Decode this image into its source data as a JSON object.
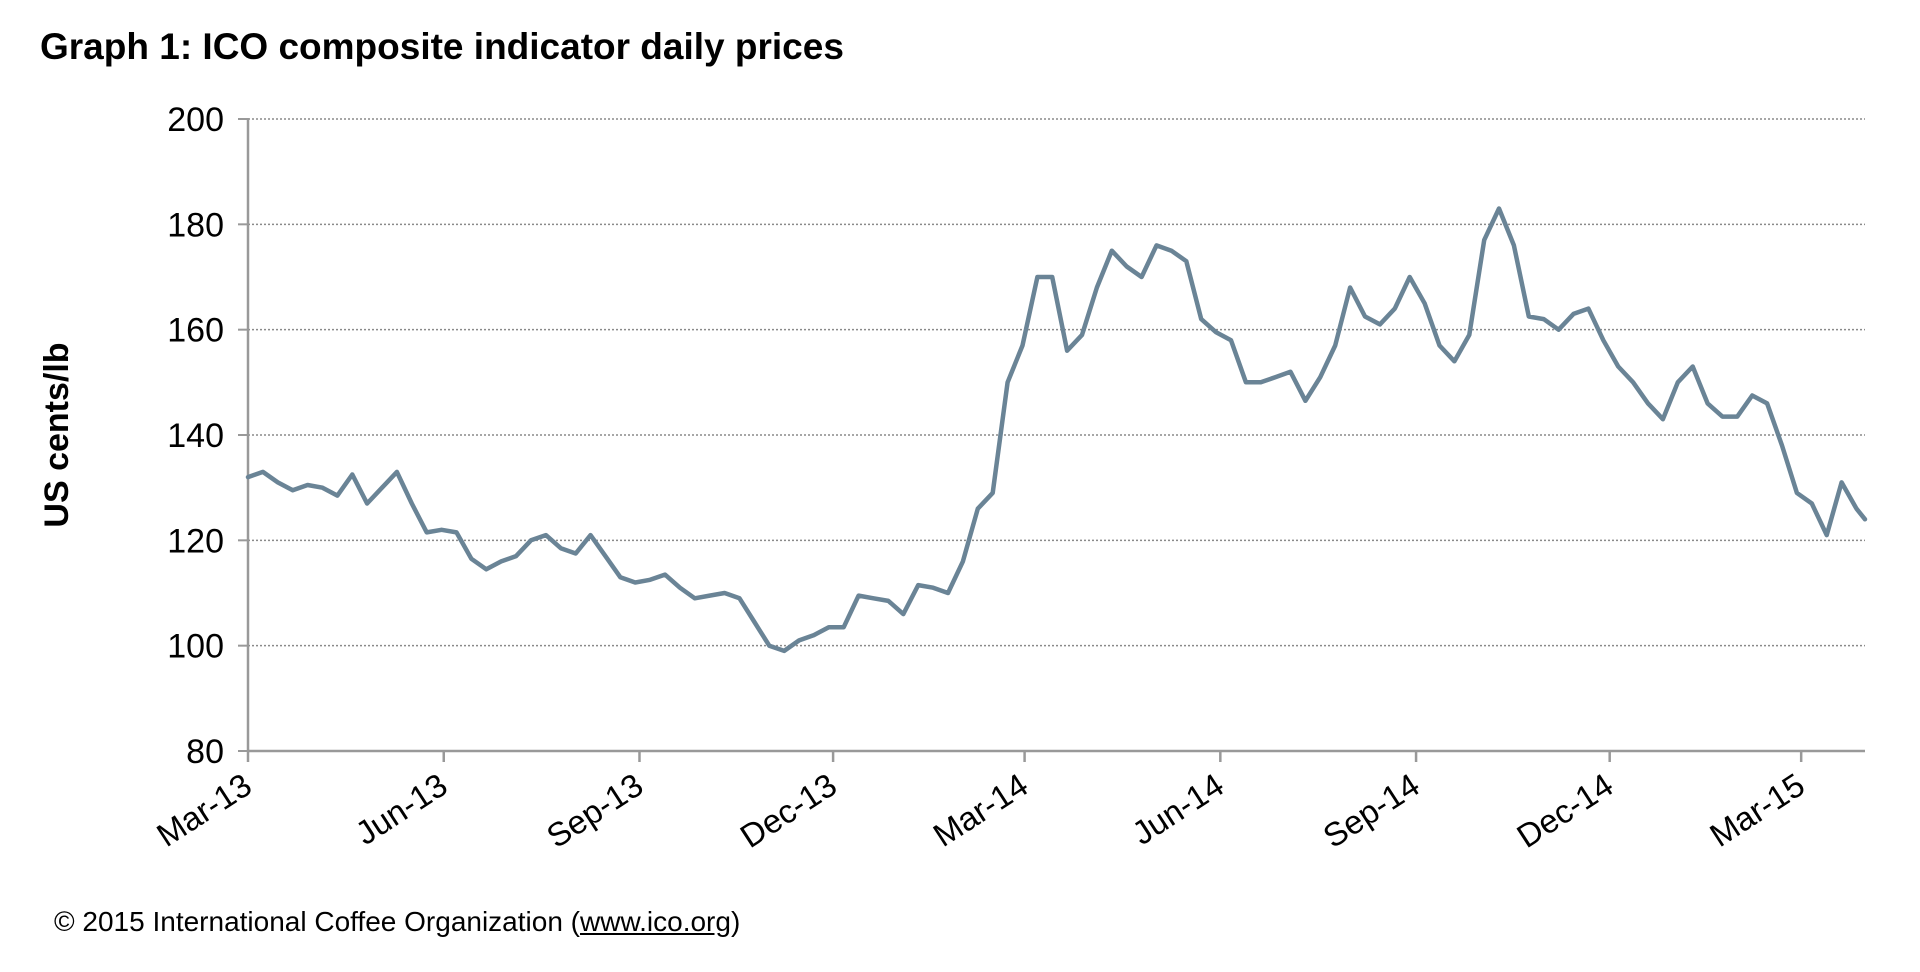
{
  "chart_data": {
    "type": "line",
    "title": "Graph 1: ICO composite indicator daily prices",
    "xlabel": "",
    "ylabel": "US cents/lb",
    "ylim": [
      80,
      200
    ],
    "yticks": [
      "80",
      "100",
      "120",
      "140",
      "160",
      "180",
      "200"
    ],
    "xticks": [
      {
        "label": "Mar-13",
        "date": "2013-03-01"
      },
      {
        "label": "Jun-13",
        "date": "2013-06-01"
      },
      {
        "label": "Sep-13",
        "date": "2013-09-01"
      },
      {
        "label": "Dec-13",
        "date": "2013-12-01"
      },
      {
        "label": "Mar-14",
        "date": "2014-03-01"
      },
      {
        "label": "Jun-14",
        "date": "2014-06-01"
      },
      {
        "label": "Sep-14",
        "date": "2014-09-01"
      },
      {
        "label": "Dec-14",
        "date": "2014-12-01"
      },
      {
        "label": "Mar-15",
        "date": "2015-03-01"
      }
    ],
    "xlim": [
      "2013-03-01",
      "2015-03-31"
    ],
    "grid": "horizontal-dotted",
    "line_color": "#6a8496",
    "points": [
      [
        "2013-03-01",
        132
      ],
      [
        "2013-03-08",
        133
      ],
      [
        "2013-03-15",
        131
      ],
      [
        "2013-03-22",
        129.5
      ],
      [
        "2013-03-29",
        130.5
      ],
      [
        "2013-04-05",
        130
      ],
      [
        "2013-04-12",
        128.5
      ],
      [
        "2013-04-19",
        132.5
      ],
      [
        "2013-04-26",
        127
      ],
      [
        "2013-05-03",
        130
      ],
      [
        "2013-05-10",
        133
      ],
      [
        "2013-05-17",
        127
      ],
      [
        "2013-05-24",
        121.5
      ],
      [
        "2013-05-31",
        122
      ],
      [
        "2013-06-07",
        121.5
      ],
      [
        "2013-06-14",
        116.5
      ],
      [
        "2013-06-21",
        114.5
      ],
      [
        "2013-06-28",
        116
      ],
      [
        "2013-07-05",
        117
      ],
      [
        "2013-07-12",
        120
      ],
      [
        "2013-07-19",
        121
      ],
      [
        "2013-07-26",
        118.5
      ],
      [
        "2013-08-02",
        117.5
      ],
      [
        "2013-08-09",
        121
      ],
      [
        "2013-08-16",
        117
      ],
      [
        "2013-08-23",
        113
      ],
      [
        "2013-08-30",
        112
      ],
      [
        "2013-09-06",
        112.5
      ],
      [
        "2013-09-13",
        113.5
      ],
      [
        "2013-09-20",
        111
      ],
      [
        "2013-09-27",
        109
      ],
      [
        "2013-10-04",
        109.5
      ],
      [
        "2013-10-11",
        110
      ],
      [
        "2013-10-18",
        109
      ],
      [
        "2013-10-25",
        104.5
      ],
      [
        "2013-11-01",
        100
      ],
      [
        "2013-11-08",
        99
      ],
      [
        "2013-11-15",
        101
      ],
      [
        "2013-11-22",
        102
      ],
      [
        "2013-11-29",
        103.5
      ],
      [
        "2013-12-06",
        103.5
      ],
      [
        "2013-12-13",
        109.5
      ],
      [
        "2013-12-20",
        109
      ],
      [
        "2013-12-27",
        108.5
      ],
      [
        "2014-01-03",
        106
      ],
      [
        "2014-01-10",
        111.5
      ],
      [
        "2014-01-17",
        111
      ],
      [
        "2014-01-24",
        110
      ],
      [
        "2014-01-31",
        116
      ],
      [
        "2014-02-07",
        126
      ],
      [
        "2014-02-14",
        129
      ],
      [
        "2014-02-21",
        150
      ],
      [
        "2014-02-28",
        157
      ],
      [
        "2014-03-07",
        170
      ],
      [
        "2014-03-14",
        170
      ],
      [
        "2014-03-21",
        156
      ],
      [
        "2014-03-28",
        159
      ],
      [
        "2014-04-04",
        168
      ],
      [
        "2014-04-11",
        175
      ],
      [
        "2014-04-18",
        172
      ],
      [
        "2014-04-25",
        170
      ],
      [
        "2014-05-02",
        176
      ],
      [
        "2014-05-09",
        175
      ],
      [
        "2014-05-16",
        173
      ],
      [
        "2014-05-23",
        162
      ],
      [
        "2014-05-30",
        159.5
      ],
      [
        "2014-06-06",
        158
      ],
      [
        "2014-06-13",
        150
      ],
      [
        "2014-06-20",
        150
      ],
      [
        "2014-06-27",
        151
      ],
      [
        "2014-07-04",
        152
      ],
      [
        "2014-07-11",
        146.5
      ],
      [
        "2014-07-18",
        151
      ],
      [
        "2014-07-25",
        157
      ],
      [
        "2014-08-01",
        168
      ],
      [
        "2014-08-08",
        162.5
      ],
      [
        "2014-08-15",
        161
      ],
      [
        "2014-08-22",
        164
      ],
      [
        "2014-08-29",
        170
      ],
      [
        "2014-09-05",
        165
      ],
      [
        "2014-09-12",
        157
      ],
      [
        "2014-09-19",
        154
      ],
      [
        "2014-09-26",
        159
      ],
      [
        "2014-10-03",
        177
      ],
      [
        "2014-10-10",
        183
      ],
      [
        "2014-10-17",
        176
      ],
      [
        "2014-10-24",
        162.5
      ],
      [
        "2014-10-31",
        162
      ],
      [
        "2014-11-07",
        160
      ],
      [
        "2014-11-14",
        163
      ],
      [
        "2014-11-21",
        164
      ],
      [
        "2014-11-28",
        158
      ],
      [
        "2014-12-05",
        153
      ],
      [
        "2014-12-12",
        150
      ],
      [
        "2014-12-19",
        146
      ],
      [
        "2014-12-26",
        143
      ],
      [
        "2015-01-02",
        150
      ],
      [
        "2015-01-09",
        153
      ],
      [
        "2015-01-16",
        146
      ],
      [
        "2015-01-23",
        143.5
      ],
      [
        "2015-01-30",
        143.5
      ],
      [
        "2015-02-06",
        147.5
      ],
      [
        "2015-02-13",
        146
      ],
      [
        "2015-02-20",
        138
      ],
      [
        "2015-02-27",
        129
      ],
      [
        "2015-03-06",
        127
      ],
      [
        "2015-03-13",
        121
      ],
      [
        "2015-03-20",
        131
      ],
      [
        "2015-03-27",
        126
      ],
      [
        "2015-03-31",
        124
      ]
    ]
  },
  "footer": {
    "prefix": "© 2015 International Coffee Organization (",
    "link": "www.ico.org",
    "suffix": ")"
  }
}
